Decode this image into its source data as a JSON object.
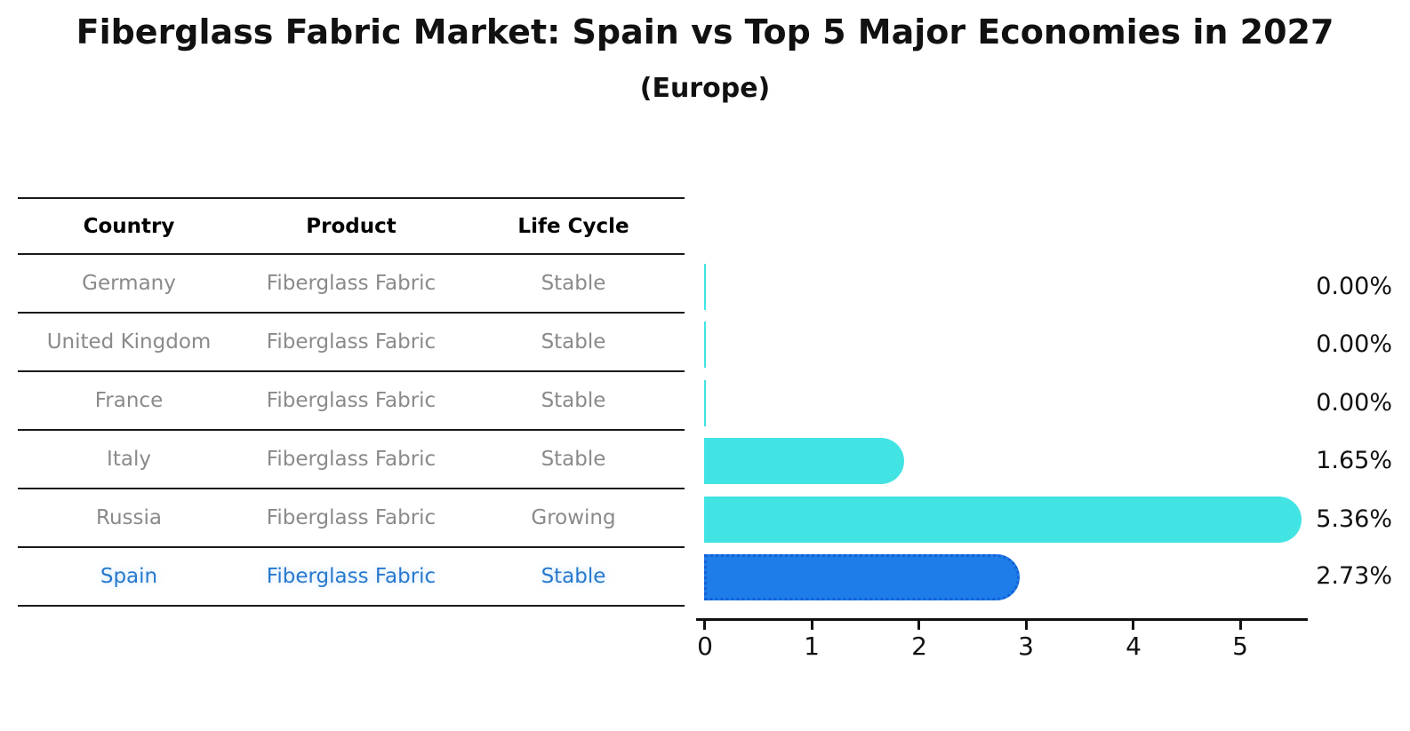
{
  "title": "Fiberglass Fabric Market: Spain vs Top 5 Major Economies in 2027",
  "subtitle": "(Europe)",
  "table": {
    "headers": [
      "Country",
      "Product",
      "Life Cycle"
    ],
    "rows": [
      {
        "country": "Germany",
        "product": "Fiberglass Fabric",
        "life_cycle": "Stable"
      },
      {
        "country": "United Kingdom",
        "product": "Fiberglass Fabric",
        "life_cycle": "Stable"
      },
      {
        "country": "France",
        "product": "Fiberglass Fabric",
        "life_cycle": "Stable"
      },
      {
        "country": "Italy",
        "product": "Fiberglass Fabric",
        "life_cycle": "Stable"
      },
      {
        "country": "Russia",
        "product": "Fiberglass Fabric",
        "life_cycle": "Growing"
      },
      {
        "country": "Spain",
        "product": "Fiberglass Fabric",
        "life_cycle": "Stable"
      }
    ]
  },
  "chart_data": {
    "type": "bar",
    "orientation": "horizontal",
    "title": "Fiberglass Fabric Market: Spain vs Top 5 Major Economies in 2027",
    "subtitle": "(Europe)",
    "categories": [
      "Germany",
      "United Kingdom",
      "France",
      "Italy",
      "Russia",
      "Spain"
    ],
    "values": [
      0.0,
      0.0,
      0.0,
      1.65,
      5.36,
      2.73
    ],
    "value_labels": [
      "0.00%",
      "0.00%",
      "0.00%",
      "1.65%",
      "5.36%",
      "2.73%"
    ],
    "x_ticks": [
      "0",
      "1",
      "2",
      "3",
      "4",
      "5"
    ],
    "xlim": [
      0,
      5.6
    ],
    "xlabel": "",
    "ylabel": "",
    "grid": false,
    "legend": false,
    "bar_color": "#42e3e3",
    "highlight_bar_color": "#1e7de8",
    "highlight_border_color": "#1460d8",
    "highlight_index": 5,
    "highlight_category": "Spain",
    "highlight_text_color": "#2879ce"
  }
}
